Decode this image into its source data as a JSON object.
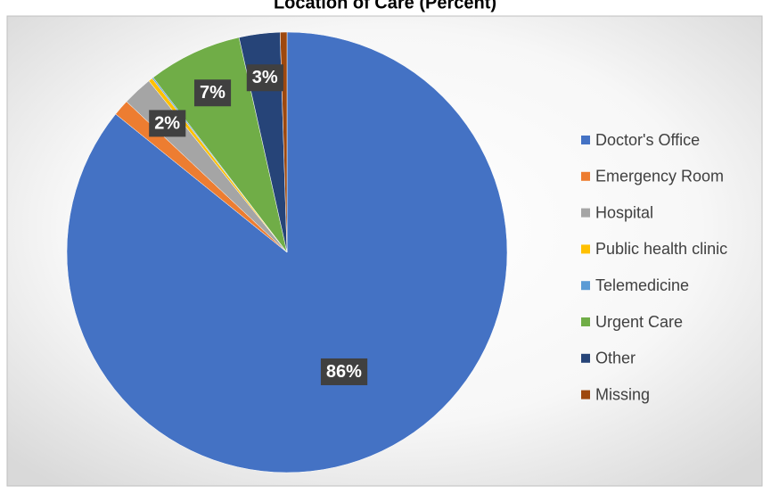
{
  "chart_data": {
    "type": "pie",
    "title": "Location of Care (Percent)",
    "categories": [
      "Doctor's Office",
      "Emergency Room",
      "Hospital",
      "Public health clinic",
      "Telemedicine",
      "Urgent Care",
      "Other",
      "Missing"
    ],
    "values": [
      85.8,
      1.2,
      2.2,
      0.3,
      0.1,
      6.9,
      3,
      0.5
    ],
    "value_labels": [
      "86%",
      null,
      "2%",
      null,
      null,
      "7%",
      "3%",
      null
    ],
    "colors": [
      "#4472c4",
      "#ed7d31",
      "#a5a5a5",
      "#ffc000",
      "#5b9bd5",
      "#70ad47",
      "#264478",
      "#9e480e"
    ],
    "legend": "right"
  }
}
